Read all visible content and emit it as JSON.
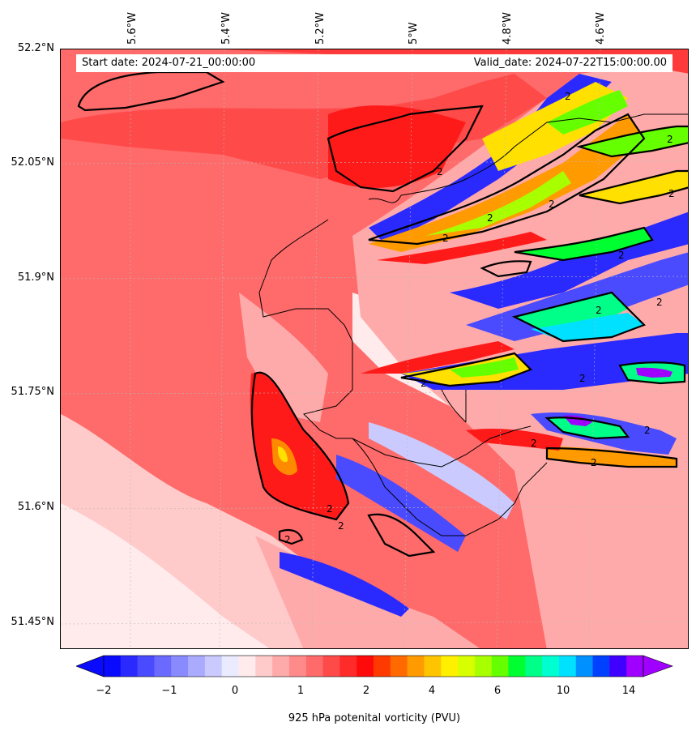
{
  "header": {
    "start_date": "Start date: 2024-07-21_00:00:00",
    "valid_date": "Valid_date: 2024-07-22T15:00:00.00"
  },
  "axes": {
    "lat_labels": [
      "52.2°N",
      "52.05°N",
      "51.9°N",
      "51.75°N",
      "51.6°N",
      "51.45°N"
    ],
    "lon_labels": [
      "5.6°W",
      "5.4°W",
      "5.2°W",
      "5°W",
      "4.8°W",
      "4.6°W"
    ]
  },
  "colorbar": {
    "label": "925 hPa potenital vorticity (PVU)",
    "ticks": [
      "−2",
      "−1",
      "0",
      "1",
      "2",
      "4",
      "6",
      "10",
      "14"
    ],
    "colors": [
      "#0a0aff",
      "#2a2aff",
      "#4a4aff",
      "#6a6aff",
      "#8a8aff",
      "#aaaaff",
      "#cacaff",
      "#ebebff",
      "#ffebeb",
      "#ffcaca",
      "#ffaaaa",
      "#ff8a8a",
      "#ff6a6a",
      "#ff4a4a",
      "#ff2a2a",
      "#ff0a0a",
      "#ff3a00",
      "#ff6a00",
      "#ff9a00",
      "#ffc400",
      "#fff000",
      "#d8ff00",
      "#a8ff00",
      "#66ff00",
      "#00ff30",
      "#00ff88",
      "#00ffd0",
      "#00e0ff",
      "#0090ff",
      "#0040ff",
      "#4000ff",
      "#a000ff"
    ]
  },
  "contour_labels": [
    "2",
    "2",
    "2",
    "2",
    "2",
    "2",
    "2",
    "2",
    "2",
    "2",
    "2",
    "2",
    "2",
    "2",
    "2",
    "2",
    "2",
    "2"
  ]
}
